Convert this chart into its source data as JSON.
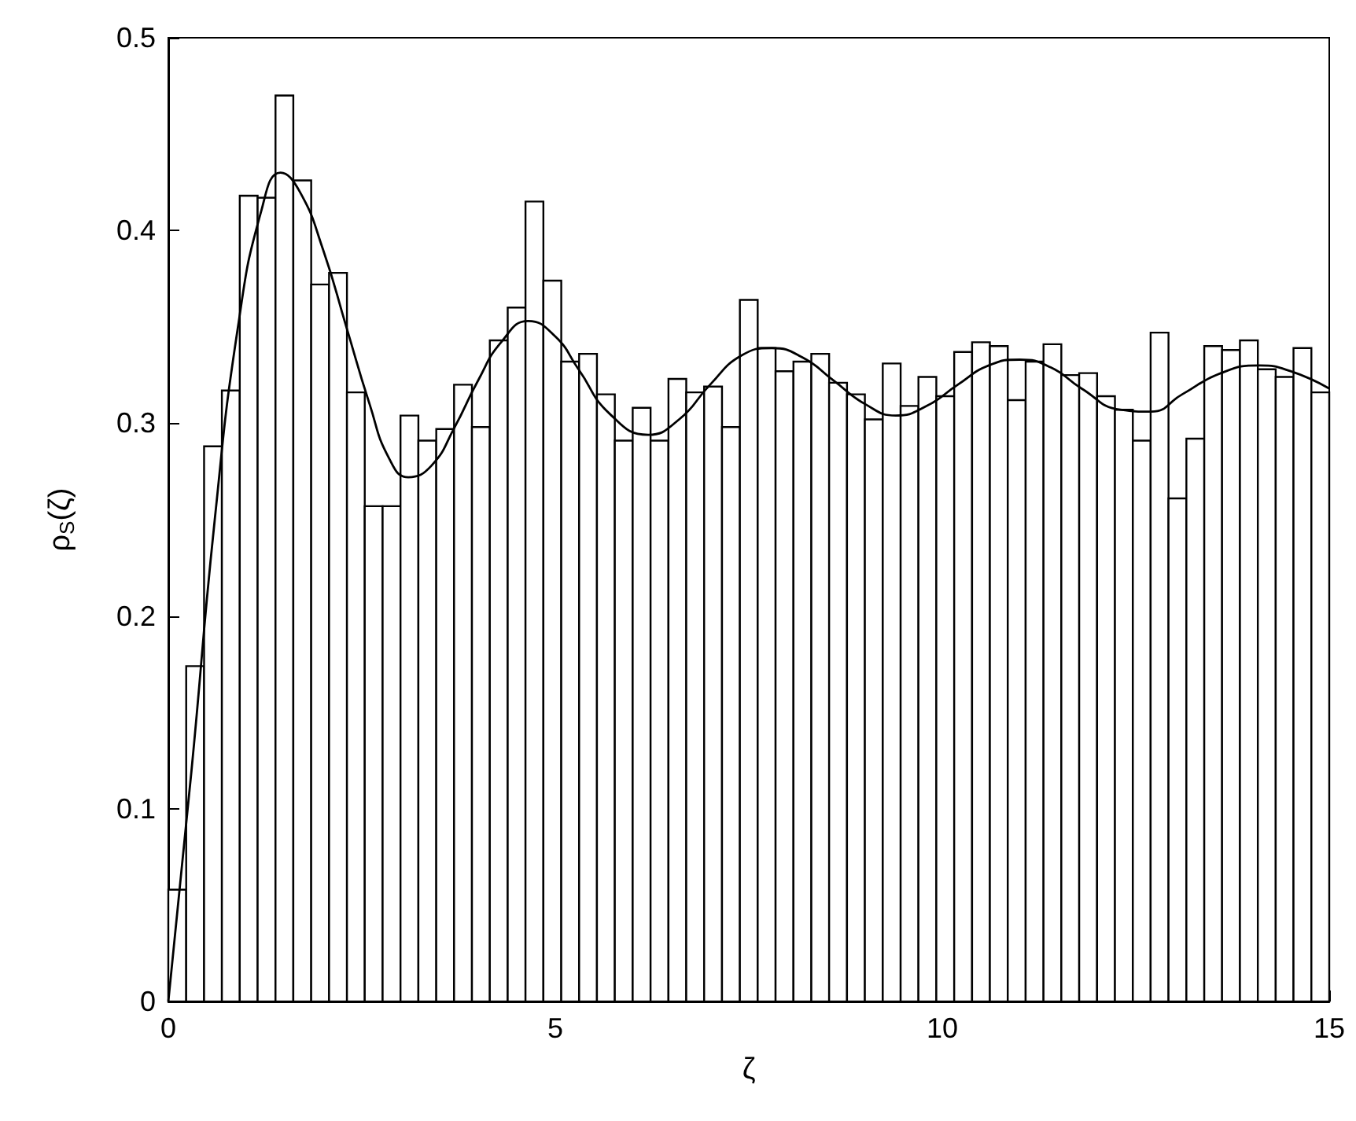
{
  "chart_data": {
    "type": "histogram",
    "xlabel": "ζ",
    "ylabel": "ρ$_{S}$(ζ)",
    "xlim": [
      0,
      15
    ],
    "xticks": [
      0,
      5,
      10,
      15
    ],
    "ylim": [
      0,
      0.5
    ],
    "yticks": [
      0,
      0.1,
      0.2,
      0.3,
      0.4,
      0.5
    ],
    "grid": false,
    "series": [
      {
        "color": "#000000",
        "bins": [
          0,
          0.231,
          0.462,
          0.692,
          0.923,
          1.154,
          1.385,
          1.615,
          1.846,
          2.077,
          2.308,
          2.538,
          2.769,
          3,
          3.231,
          3.462,
          3.692,
          3.923,
          4.154,
          4.385,
          4.615,
          4.846,
          5.077,
          5.308,
          5.538,
          5.769,
          6,
          6.231,
          6.462,
          6.692,
          6.923,
          7.154,
          7.385,
          7.615,
          7.846,
          8.077,
          8.308,
          8.538,
          8.769,
          9,
          9.231,
          9.462,
          9.692,
          9.923,
          10.154,
          10.385,
          10.615,
          10.846,
          11.077,
          11.308,
          11.538,
          11.769,
          12,
          12.231,
          12.462,
          12.692,
          12.923,
          13.154,
          13.385,
          13.615,
          13.846,
          14.077,
          14.308,
          14.538,
          14.769,
          15
        ],
        "values": [
          0.058,
          0.174,
          0.288,
          0.317,
          0.418,
          0.417,
          0.47,
          0.426,
          0.372,
          0.378,
          0.316,
          0.257,
          0.257,
          0.304,
          0.291,
          0.297,
          0.32,
          0.298,
          0.343,
          0.36,
          0.415,
          0.374,
          0.332,
          0.336,
          0.315,
          0.291,
          0.308,
          0.291,
          0.323,
          0.316,
          0.319,
          0.298,
          0.364,
          0.339,
          0.327,
          0.332,
          0.336,
          0.321,
          0.315,
          0.302,
          0.331,
          0.309,
          0.324,
          0.314,
          0.337,
          0.342,
          0.34,
          0.312,
          0.332,
          0.341,
          0.325,
          0.326,
          0.314,
          0.307,
          0.291,
          0.347,
          0.261,
          0.292,
          0.34,
          0.338,
          0.343,
          0.328,
          0.324,
          0.339,
          0.316
        ]
      },
      {
        "type": "line",
        "color": "#000000",
        "line_style": "solid",
        "marker": "none",
        "x": [
          0,
          0.3,
          0.6,
          0.9,
          1.2,
          1.45,
          1.7,
          2.0,
          2.3,
          2.6,
          2.85,
          3.1,
          3.4,
          3.7,
          4.0,
          4.3,
          4.65,
          5.0,
          5.3,
          5.7,
          6.2,
          6.6,
          7.0,
          7.4,
          7.8,
          8.2,
          8.6,
          9.0,
          9.4,
          9.8,
          10.2,
          10.6,
          11.0,
          11.4,
          11.8,
          12.3,
          12.7,
          13.1,
          13.6,
          14.1,
          14.5,
          15
        ],
        "values": [
          0,
          0.12,
          0.25,
          0.35,
          0.41,
          0.43,
          0.42,
          0.39,
          0.35,
          0.31,
          0.282,
          0.272,
          0.278,
          0.298,
          0.322,
          0.342,
          0.353,
          0.345,
          0.328,
          0.305,
          0.294,
          0.302,
          0.32,
          0.335,
          0.339,
          0.334,
          0.322,
          0.31,
          0.304,
          0.309,
          0.32,
          0.33,
          0.333,
          0.329,
          0.318,
          0.307,
          0.306,
          0.315,
          0.326,
          0.33,
          0.327,
          0.318
        ]
      }
    ]
  }
}
